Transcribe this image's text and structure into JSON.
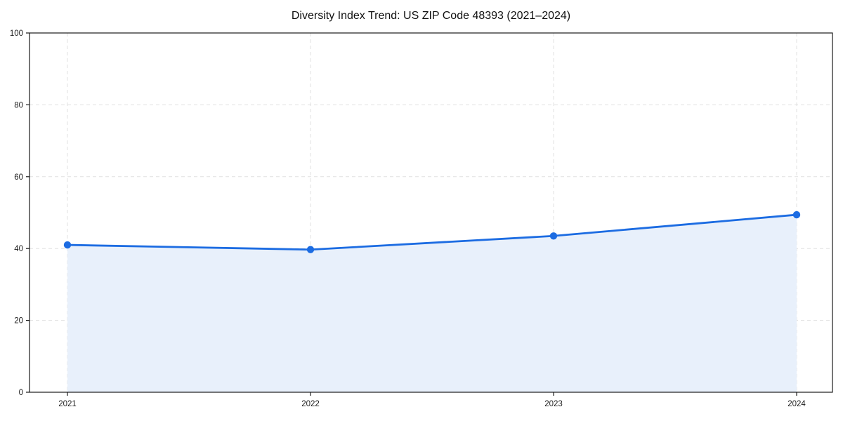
{
  "chart_data": {
    "type": "area",
    "title": "Diversity Index Trend: US ZIP Code 48393 (2021–2024)",
    "xlabel": "",
    "ylabel": "",
    "x": [
      2021,
      2022,
      2023,
      2024
    ],
    "series": [
      {
        "name": "Diversity Index",
        "values": [
          41.0,
          39.7,
          43.5,
          49.4
        ]
      }
    ],
    "ylim": [
      0,
      100
    ],
    "yticks": [
      0,
      20,
      40,
      60,
      80,
      100
    ],
    "grid": true,
    "grid_style": "dashed",
    "legend": "none",
    "colors": {
      "line": "#1c6ce2",
      "marker": "#1c6ce2",
      "area_fill": "#e8f0fb",
      "grid": "#e0e0e0",
      "spine": "#1a1a1a",
      "tick_text": "#1a1a1a",
      "background": "#ffffff"
    }
  }
}
